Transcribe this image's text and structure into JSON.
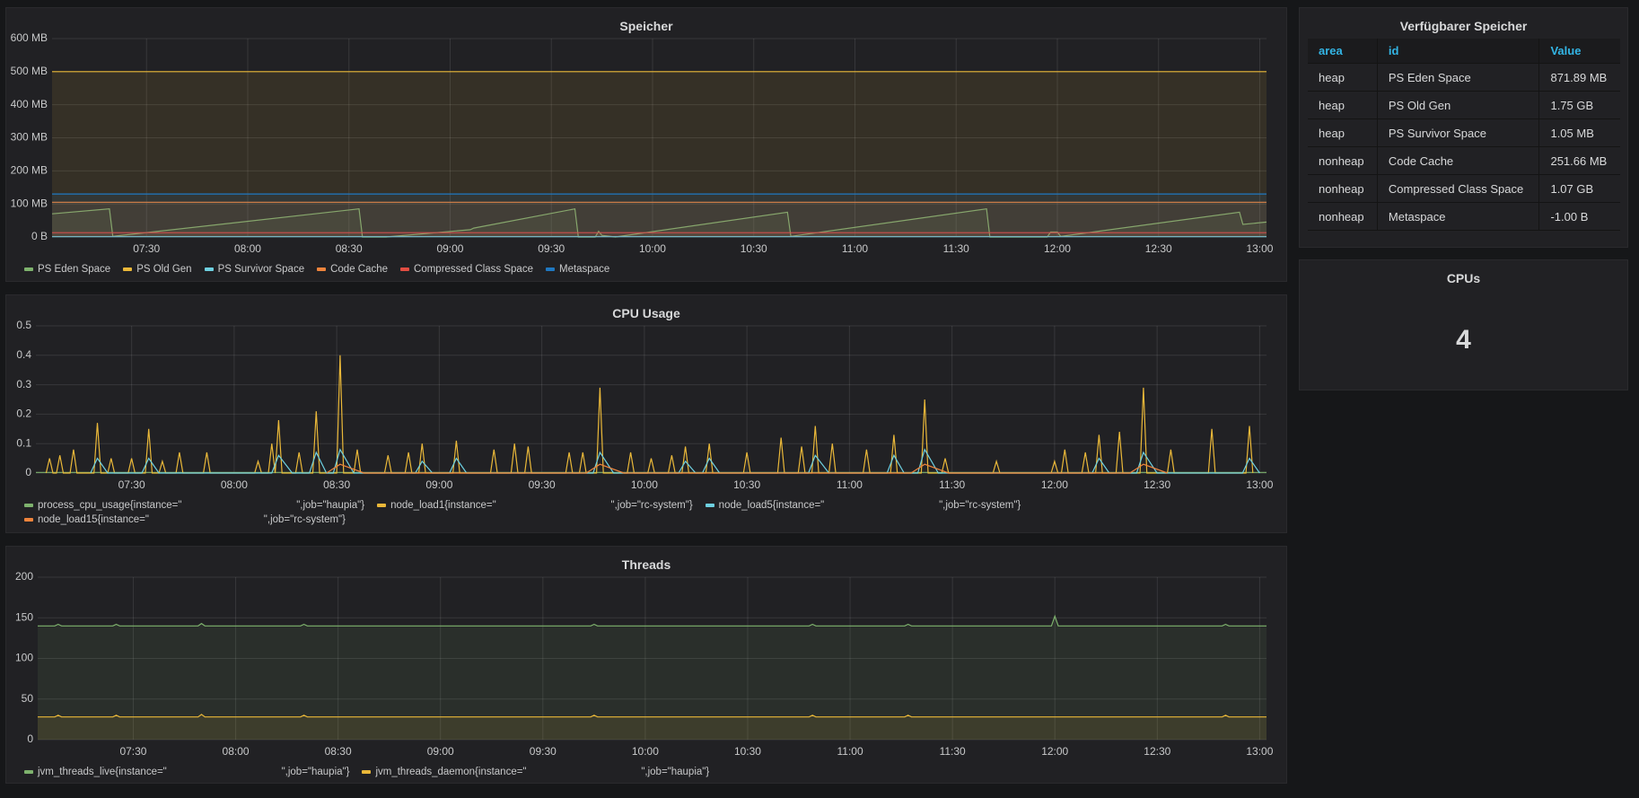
{
  "chart_data": [
    {
      "type": "line",
      "title": "Speicher",
      "fill": true,
      "grid": true,
      "legend": "bottom",
      "xlim": [
        "07:02",
        "13:02"
      ],
      "xticks": [
        "07:30",
        "08:00",
        "08:30",
        "09:00",
        "09:30",
        "10:00",
        "10:30",
        "11:00",
        "11:30",
        "12:00",
        "12:30",
        "13:00"
      ],
      "ylim": [
        0,
        600
      ],
      "yticks": [
        {
          "value": 0,
          "label": "0 B"
        },
        {
          "value": 100,
          "label": "100 MB"
        },
        {
          "value": 200,
          "label": "200 MB"
        },
        {
          "value": 300,
          "label": "300 MB"
        },
        {
          "value": 400,
          "label": "400 MB"
        },
        {
          "value": 500,
          "label": "500 MB"
        },
        {
          "value": 600,
          "label": "600 MB"
        }
      ],
      "series": [
        {
          "name": "PS Eden Space",
          "color": "#7eb26d",
          "x": [
            "07:02",
            "07:19",
            "07:20",
            "08:33",
            "08:34",
            "08:41",
            "09:06",
            "09:07",
            "09:37",
            "09:38",
            "09:43",
            "09:44",
            "09:45",
            "09:49",
            "10:40",
            "10:41",
            "11:39",
            "11:40",
            "11:57",
            "11:58",
            "12:00",
            "12:01",
            "12:54",
            "12:55",
            "13:02"
          ],
          "values": [
            70,
            85,
            2,
            85,
            0,
            0,
            22,
            27,
            85,
            0,
            0,
            17,
            5,
            0,
            75,
            2,
            85,
            0,
            0,
            15,
            15,
            2,
            75,
            38,
            45
          ]
        },
        {
          "name": "PS Old Gen",
          "color": "#eab839",
          "x": [
            "07:02",
            "13:02"
          ],
          "values": [
            500,
            500
          ]
        },
        {
          "name": "PS Survivor Space",
          "color": "#6ed0e0",
          "x": [
            "07:02",
            "13:02"
          ],
          "values": [
            1,
            1
          ]
        },
        {
          "name": "Code Cache",
          "color": "#ef843c",
          "x": [
            "07:02",
            "13:02"
          ],
          "values": [
            105,
            105
          ]
        },
        {
          "name": "Compressed Class Space",
          "color": "#e24d42",
          "x": [
            "07:02",
            "13:02"
          ],
          "values": [
            13,
            13
          ]
        },
        {
          "name": "Metaspace",
          "color": "#1f78c1",
          "x": [
            "07:02",
            "13:02"
          ],
          "values": [
            130,
            130
          ]
        }
      ]
    },
    {
      "type": "line",
      "title": "CPU Usage",
      "fill": false,
      "grid": true,
      "legend": "bottom",
      "xlim": [
        "07:02",
        "13:02"
      ],
      "xticks": [
        "07:30",
        "08:00",
        "08:30",
        "09:00",
        "09:30",
        "10:00",
        "10:30",
        "11:00",
        "11:30",
        "12:00",
        "12:30",
        "13:00"
      ],
      "ylim": [
        0,
        0.5
      ],
      "yticks": [
        0,
        0.1,
        0.2,
        0.3,
        0.4,
        0.5
      ],
      "series": [
        {
          "name": "process_cpu_usage{instance=\"                                        \",job=\"haupia\"}",
          "color": "#7eb26d",
          "x": [
            "07:02",
            "13:02"
          ],
          "values": [
            0.002,
            0.002
          ]
        },
        {
          "name": "node_load1{instance=\"                                        \",job=\"rc-system\"}",
          "color": "#eab839",
          "x": [
            "07:05",
            "07:06",
            "07:07",
            "07:08",
            "07:09",
            "07:10",
            "07:12",
            "07:13",
            "07:14",
            "07:19",
            "07:20",
            "07:21",
            "07:23",
            "07:24",
            "07:25",
            "07:29",
            "07:30",
            "07:31",
            "07:34",
            "07:35",
            "07:36",
            "07:38",
            "07:39",
            "07:40",
            "07:43",
            "07:44",
            "07:45",
            "07:51",
            "07:52",
            "07:53",
            "08:06",
            "08:07",
            "08:08",
            "08:10",
            "08:11",
            "08:12",
            "08:13",
            "08:14",
            "08:18",
            "08:19",
            "08:20",
            "08:23",
            "08:24",
            "08:25",
            "08:30",
            "08:31",
            "08:32",
            "08:35",
            "08:36",
            "08:37",
            "08:44",
            "08:45",
            "08:46",
            "08:50",
            "08:51",
            "08:52",
            "08:54",
            "08:55",
            "08:56",
            "09:04",
            "09:05",
            "09:06",
            "09:15",
            "09:16",
            "09:17",
            "09:21",
            "09:22",
            "09:23",
            "09:25",
            "09:26",
            "09:27",
            "09:37",
            "09:38",
            "09:39",
            "09:41",
            "09:42",
            "09:43",
            "09:46",
            "09:47",
            "09:48",
            "09:55",
            "09:56",
            "09:57",
            "10:01",
            "10:02",
            "10:03",
            "10:07",
            "10:08",
            "10:09",
            "10:11",
            "10:12",
            "10:13",
            "10:18",
            "10:19",
            "10:20",
            "10:29",
            "10:30",
            "10:31",
            "10:39",
            "10:40",
            "10:41",
            "10:45",
            "10:46",
            "10:47",
            "10:49",
            "10:50",
            "10:51",
            "10:54",
            "10:55",
            "10:56",
            "11:04",
            "11:05",
            "11:06",
            "11:12",
            "11:13",
            "11:14",
            "11:21",
            "11:22",
            "11:23",
            "11:27",
            "11:28",
            "11:29",
            "11:42",
            "11:43",
            "11:44",
            "11:59",
            "12:00",
            "12:01",
            "12:02",
            "12:03",
            "12:04",
            "12:08",
            "12:09",
            "12:10",
            "12:12",
            "12:13",
            "12:14",
            "12:18",
            "12:19",
            "12:20",
            "12:25",
            "12:26",
            "12:27",
            "12:33",
            "12:34",
            "12:35",
            "12:45",
            "12:46",
            "12:47",
            "12:56",
            "12:57",
            "12:58"
          ],
          "values": [
            0,
            0.05,
            0,
            0,
            0.06,
            0,
            0,
            0.08,
            0,
            0,
            0.17,
            0,
            0,
            0.05,
            0,
            0,
            0.05,
            0,
            0,
            0.15,
            0,
            0,
            0.04,
            0,
            0,
            0.07,
            0,
            0,
            0.07,
            0,
            0,
            0.04,
            0,
            0,
            0.1,
            0,
            0.18,
            0,
            0,
            0.07,
            0,
            0,
            0.21,
            0,
            0,
            0.4,
            0,
            0,
            0.08,
            0,
            0,
            0.06,
            0,
            0,
            0.07,
            0,
            0,
            0.1,
            0,
            0,
            0.11,
            0,
            0,
            0.08,
            0,
            0,
            0.1,
            0,
            0,
            0.09,
            0,
            0,
            0.07,
            0,
            0,
            0.07,
            0,
            0,
            0.29,
            0,
            0,
            0.07,
            0,
            0,
            0.05,
            0,
            0,
            0.06,
            0,
            0,
            0.09,
            0,
            0,
            0.1,
            0,
            0,
            0.07,
            0,
            0,
            0.12,
            0,
            0,
            0.09,
            0,
            0,
            0.16,
            0,
            0,
            0.1,
            0,
            0,
            0.08,
            0,
            0,
            0.13,
            0,
            0,
            0.25,
            0,
            0,
            0.05,
            0,
            0,
            0.04,
            0,
            0,
            0.04,
            0,
            0,
            0.08,
            0,
            0,
            0.07,
            0,
            0,
            0.13,
            0,
            0,
            0.14,
            0,
            0,
            0.29,
            0,
            0,
            0.08,
            0,
            0,
            0.15,
            0,
            0,
            0.16,
            0
          ]
        },
        {
          "name": "node_load5{instance=\"                                        \",job=\"rc-system\"}",
          "color": "#6ed0e0",
          "x": [
            "07:18",
            "07:20",
            "07:23",
            "07:33",
            "07:35",
            "07:38",
            "08:11",
            "08:13",
            "08:17",
            "08:22",
            "08:24",
            "08:27",
            "08:29",
            "08:31",
            "08:35",
            "08:53",
            "08:55",
            "08:58",
            "09:03",
            "09:05",
            "09:08",
            "09:45",
            "09:47",
            "09:51",
            "10:10",
            "10:12",
            "10:15",
            "10:17",
            "10:19",
            "10:22",
            "10:48",
            "10:50",
            "10:54",
            "11:11",
            "11:13",
            "11:16",
            "11:20",
            "11:22",
            "11:26",
            "12:11",
            "12:13",
            "12:16",
            "12:24",
            "12:26",
            "12:30",
            "12:55",
            "12:57",
            "13:00"
          ],
          "values": [
            0,
            0.05,
            0,
            0,
            0.05,
            0,
            0,
            0.06,
            0,
            0,
            0.07,
            0,
            0,
            0.08,
            0,
            0,
            0.04,
            0,
            0,
            0.05,
            0,
            0,
            0.07,
            0,
            0,
            0.04,
            0,
            0,
            0.05,
            0,
            0,
            0.06,
            0,
            0,
            0.06,
            0,
            0,
            0.08,
            0,
            0,
            0.05,
            0,
            0,
            0.07,
            0,
            0,
            0.05,
            0
          ]
        },
        {
          "name": "node_load15{instance=\"                                        \",job=\"rc-system\"}",
          "color": "#ef843c",
          "x": [
            "08:27",
            "08:31",
            "08:38",
            "09:43",
            "09:47",
            "09:54",
            "11:18",
            "11:22",
            "11:29",
            "12:22",
            "12:26",
            "12:33"
          ],
          "values": [
            0,
            0.03,
            0,
            0,
            0.03,
            0,
            0,
            0.03,
            0,
            0,
            0.03,
            0
          ]
        }
      ]
    },
    {
      "type": "line",
      "title": "Threads",
      "fill": true,
      "grid": true,
      "legend": "bottom",
      "xlim": [
        "07:02",
        "13:02"
      ],
      "xticks": [
        "07:30",
        "08:00",
        "08:30",
        "09:00",
        "09:30",
        "10:00",
        "10:30",
        "11:00",
        "11:30",
        "12:00",
        "12:30",
        "13:00"
      ],
      "ylim": [
        0,
        200
      ],
      "yticks": [
        0,
        50,
        100,
        150,
        200
      ],
      "series": [
        {
          "name": "jvm_threads_live{instance=\"                                        \",job=\"haupia\"}",
          "color": "#7eb26d",
          "x": [
            "07:02",
            "07:07",
            "07:08",
            "07:09",
            "07:24",
            "07:25",
            "07:26",
            "07:49",
            "07:50",
            "07:51",
            "08:19",
            "08:20",
            "08:21",
            "09:44",
            "09:45",
            "09:46",
            "10:48",
            "10:49",
            "10:50",
            "11:16",
            "11:17",
            "11:18",
            "11:59",
            "12:00",
            "12:01",
            "12:49",
            "12:50",
            "12:51",
            "13:02"
          ],
          "values": [
            140,
            140,
            142,
            140,
            140,
            142,
            140,
            140,
            143,
            140,
            140,
            142,
            140,
            140,
            142,
            140,
            140,
            142,
            140,
            140,
            142,
            140,
            140,
            152,
            140,
            140,
            142,
            140,
            140
          ]
        },
        {
          "name": "jvm_threads_daemon{instance=\"                                        \",job=\"haupia\"}",
          "color": "#eab839",
          "x": [
            "07:02",
            "07:07",
            "07:08",
            "07:09",
            "07:24",
            "07:25",
            "07:26",
            "07:49",
            "07:50",
            "07:51",
            "08:19",
            "08:20",
            "08:21",
            "09:44",
            "09:45",
            "09:46",
            "10:48",
            "10:49",
            "10:50",
            "11:16",
            "11:17",
            "11:18",
            "12:49",
            "12:50",
            "12:51",
            "13:02"
          ],
          "values": [
            28,
            28,
            30,
            28,
            28,
            30,
            28,
            28,
            31,
            28,
            28,
            30,
            28,
            28,
            30,
            28,
            28,
            30,
            28,
            28,
            30,
            28,
            28,
            30,
            28,
            28
          ]
        }
      ]
    }
  ],
  "table": {
    "title": "Verfügbarer Speicher",
    "columns": [
      "area",
      "id",
      "Value"
    ],
    "rows": [
      [
        "heap",
        "PS Eden Space",
        "871.89 MB"
      ],
      [
        "heap",
        "PS Old Gen",
        "1.75 GB"
      ],
      [
        "heap",
        "PS Survivor Space",
        "1.05 MB"
      ],
      [
        "nonheap",
        "Code Cache",
        "251.66 MB"
      ],
      [
        "nonheap",
        "Compressed Class Space",
        "1.07 GB"
      ],
      [
        "nonheap",
        "Metaspace",
        "-1.00 B"
      ]
    ]
  },
  "stat": {
    "title": "CPUs",
    "value": 4
  }
}
